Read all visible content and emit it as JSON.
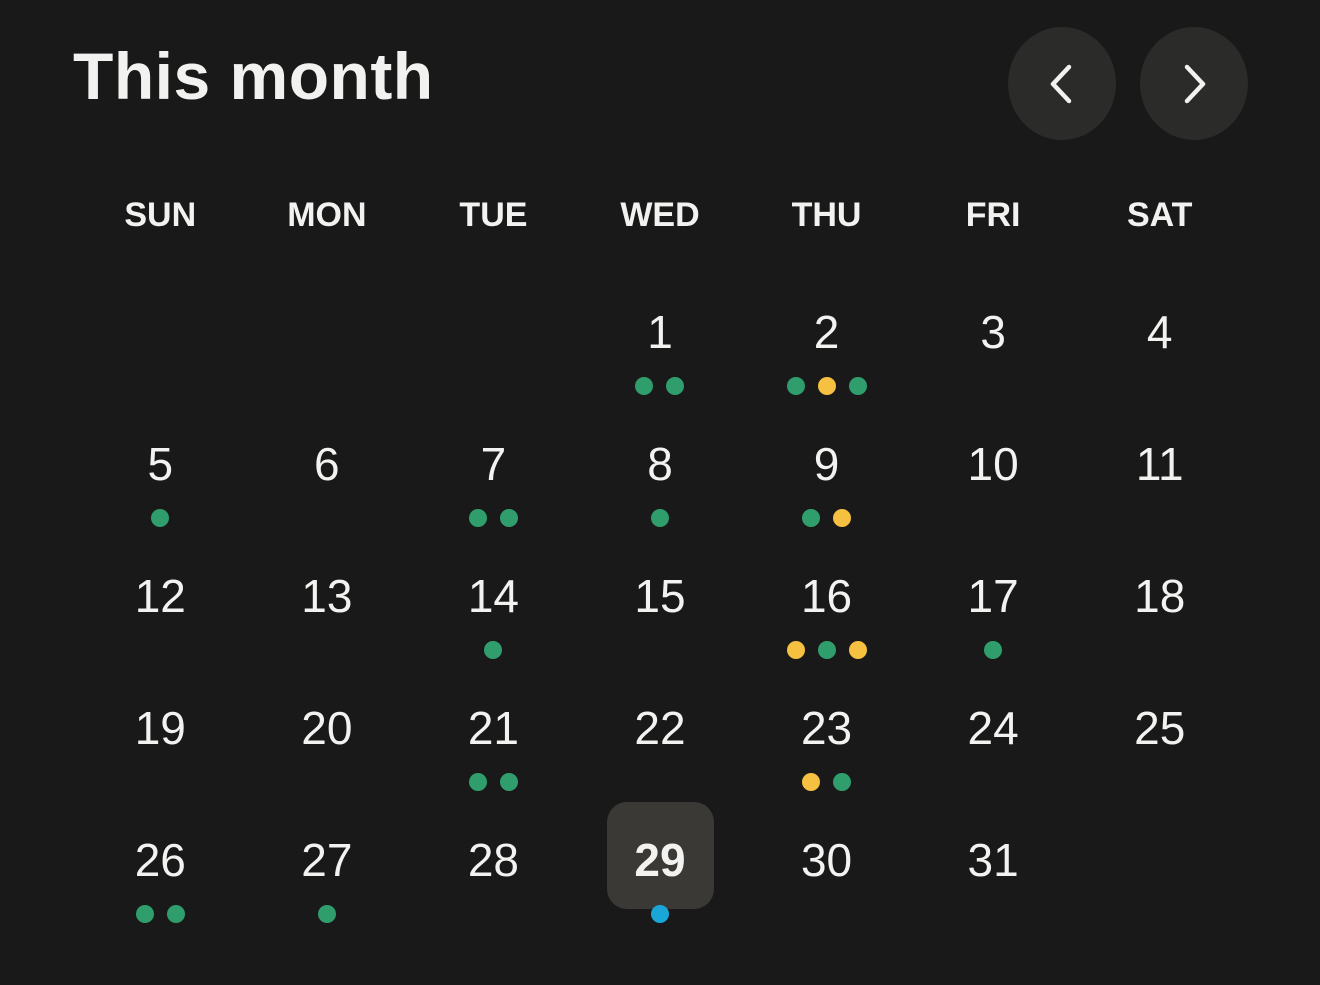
{
  "header": {
    "title": "This month",
    "prev_icon": "chevron-left-icon",
    "next_icon": "chevron-right-icon"
  },
  "colors": {
    "background": "#191919",
    "green": "#2f9e6c",
    "yellow": "#f6c041",
    "blue": "#1ba6da",
    "selected": "#3a3936"
  },
  "weekdays": [
    "SUN",
    "MON",
    "TUE",
    "WED",
    "THU",
    "FRI",
    "SAT"
  ],
  "first_weekday_offset": 3,
  "selected_day": "29",
  "days": [
    {
      "day": "1",
      "dots": [
        "green",
        "green"
      ]
    },
    {
      "day": "2",
      "dots": [
        "green",
        "yellow",
        "green"
      ]
    },
    {
      "day": "3",
      "dots": []
    },
    {
      "day": "4",
      "dots": []
    },
    {
      "day": "5",
      "dots": [
        "green"
      ]
    },
    {
      "day": "6",
      "dots": []
    },
    {
      "day": "7",
      "dots": [
        "green",
        "green"
      ]
    },
    {
      "day": "8",
      "dots": [
        "green"
      ]
    },
    {
      "day": "9",
      "dots": [
        "green",
        "yellow"
      ]
    },
    {
      "day": "10",
      "dots": []
    },
    {
      "day": "11",
      "dots": []
    },
    {
      "day": "12",
      "dots": []
    },
    {
      "day": "13",
      "dots": []
    },
    {
      "day": "14",
      "dots": [
        "green"
      ]
    },
    {
      "day": "15",
      "dots": []
    },
    {
      "day": "16",
      "dots": [
        "yellow",
        "green",
        "yellow"
      ]
    },
    {
      "day": "17",
      "dots": [
        "green"
      ]
    },
    {
      "day": "18",
      "dots": []
    },
    {
      "day": "19",
      "dots": []
    },
    {
      "day": "20",
      "dots": []
    },
    {
      "day": "21",
      "dots": [
        "green",
        "green"
      ]
    },
    {
      "day": "22",
      "dots": []
    },
    {
      "day": "23",
      "dots": [
        "yellow",
        "green"
      ]
    },
    {
      "day": "24",
      "dots": []
    },
    {
      "day": "25",
      "dots": []
    },
    {
      "day": "26",
      "dots": [
        "green",
        "green"
      ]
    },
    {
      "day": "27",
      "dots": [
        "green"
      ]
    },
    {
      "day": "28",
      "dots": []
    },
    {
      "day": "29",
      "dots": [
        "blue"
      ]
    },
    {
      "day": "30",
      "dots": []
    },
    {
      "day": "31",
      "dots": []
    }
  ]
}
